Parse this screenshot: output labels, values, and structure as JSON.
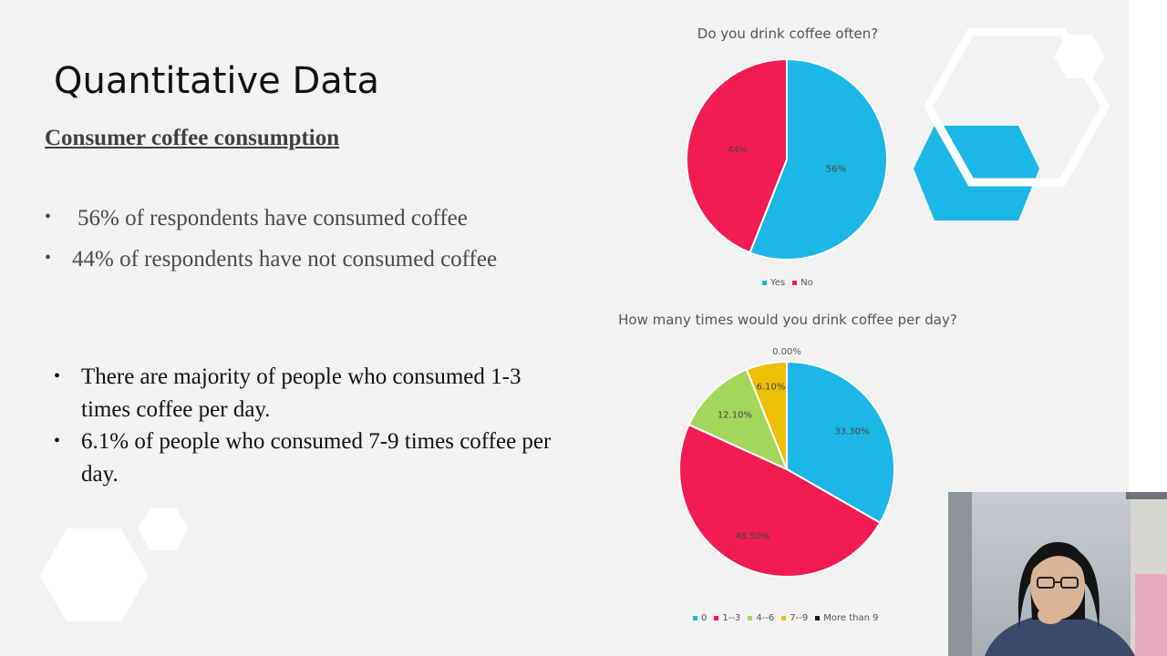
{
  "slide": {
    "title": "Quantitative Data",
    "subtitle": "Consumer coffee consumption",
    "bullets_top": [
      "56% of respondents have consumed coffee",
      "44% of respondents have not consumed coffee"
    ],
    "bullets_bottom": [
      "There are majority of people who consumed 1-3 times coffee per day.",
      "6.1% of people who consumed 7-9 times coffee per day."
    ]
  },
  "colors": {
    "background": "#f2f2f2",
    "blue": "#1bb7e6",
    "red": "#f21c53",
    "green": "#a5d65c",
    "yellow": "#ecc007",
    "black": "#1a1a2e",
    "hexagon_white": "#ffffff"
  },
  "chart_data": [
    {
      "type": "pie",
      "title": "Do you drink coffee often?",
      "categories": [
        "Yes",
        "No"
      ],
      "values": [
        56,
        44
      ],
      "data_labels": [
        "56%",
        "44%"
      ],
      "colors": [
        "#1bb7e6",
        "#f21c53"
      ],
      "legend": "bottom"
    },
    {
      "type": "pie",
      "title": "How many times would you drink coffee per day?",
      "categories": [
        "0",
        "1--3",
        "4--6",
        "7--9",
        "More than 9"
      ],
      "values": [
        33.3,
        48.5,
        12.1,
        6.1,
        0.0
      ],
      "data_labels": [
        "33.30%",
        "48.50%",
        "12.10%",
        "6.10%",
        "0.00%"
      ],
      "colors": [
        "#1bb7e6",
        "#f21c53",
        "#a5d65c",
        "#ecc007",
        "#1a1a2e"
      ],
      "legend": "bottom"
    }
  ],
  "webcam": {
    "icon": "presenter-webcam-icon"
  }
}
